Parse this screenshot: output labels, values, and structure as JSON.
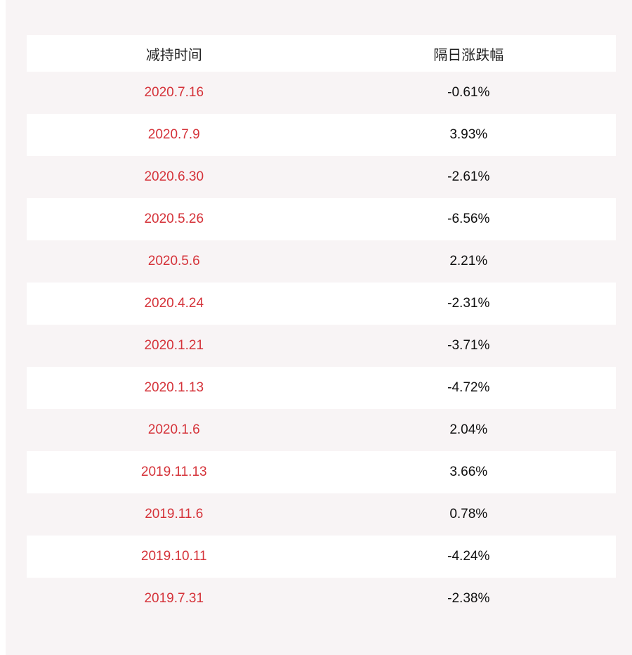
{
  "table": {
    "headers": [
      "减持时间",
      "隔日涨跌幅"
    ],
    "rows": [
      {
        "date": "2020.7.16",
        "change": "-0.61%"
      },
      {
        "date": "2020.7.9",
        "change": "3.93%"
      },
      {
        "date": "2020.6.30",
        "change": "-2.61%"
      },
      {
        "date": "2020.5.26",
        "change": "-6.56%"
      },
      {
        "date": "2020.5.6",
        "change": "2.21%"
      },
      {
        "date": "2020.4.24",
        "change": "-2.31%"
      },
      {
        "date": "2020.1.21",
        "change": "-3.71%"
      },
      {
        "date": "2020.1.13",
        "change": "-4.72%"
      },
      {
        "date": "2020.1.6",
        "change": "2.04%"
      },
      {
        "date": "2019.11.13",
        "change": "3.66%"
      },
      {
        "date": "2019.11.6",
        "change": "0.78%"
      },
      {
        "date": "2019.10.11",
        "change": "-4.24%"
      },
      {
        "date": "2019.7.31",
        "change": "-2.38%"
      }
    ]
  },
  "colors": {
    "date_text": "#d5333a",
    "value_text": "#111111",
    "panel_bg": "#f8f4f5",
    "stripe_bg": "#ffffff"
  }
}
